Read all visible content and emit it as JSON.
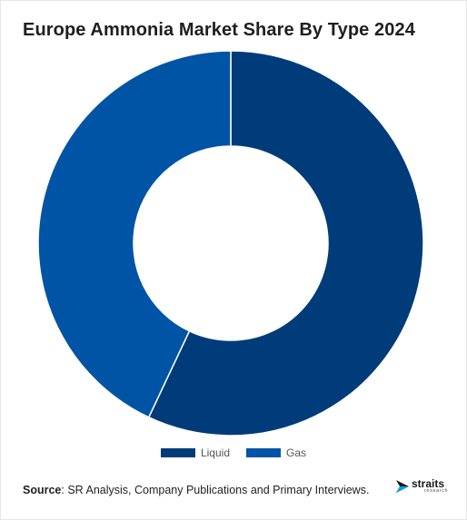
{
  "title": "Europe Ammonia Market Share By Type 2024",
  "chart_data": {
    "type": "pie",
    "subtype": "donut",
    "title": "Europe Ammonia Market Share By Type 2024",
    "categories": [
      "Liquid",
      "Gas"
    ],
    "values": [
      57,
      43
    ],
    "unit": "%",
    "colors": [
      "#003b7a",
      "#0054a6"
    ],
    "legend_position": "bottom"
  },
  "legend": {
    "items": [
      {
        "label": "Liquid",
        "color": "#003b7a"
      },
      {
        "label": "Gas",
        "color": "#0054a6"
      }
    ]
  },
  "source": {
    "label": "Source",
    "text": ": SR Analysis, Company Publications and Primary Interviews."
  },
  "brand": {
    "name": "straits",
    "sub": "research",
    "icon": "straits-logo-icon"
  }
}
